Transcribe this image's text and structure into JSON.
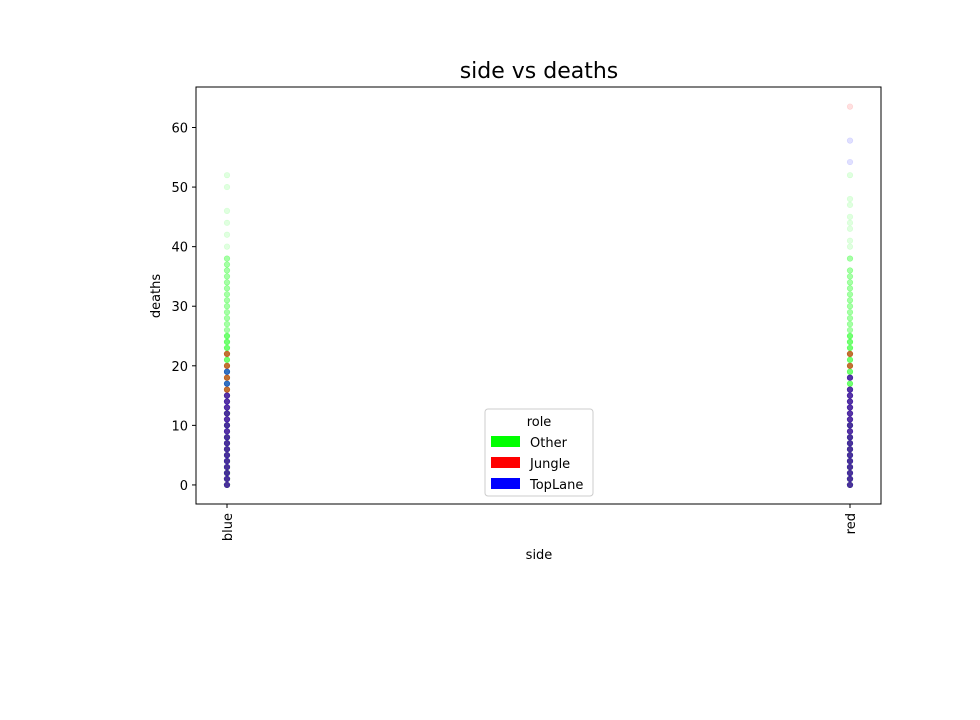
{
  "chart_data": {
    "type": "scatter",
    "title": "side vs deaths",
    "xlabel": "side",
    "ylabel": "deaths",
    "categories": [
      "blue",
      "red"
    ],
    "ylim": [
      -3.2,
      66.8
    ],
    "yticks": [
      0,
      10,
      20,
      30,
      40,
      50,
      60
    ],
    "grid": false,
    "legend": {
      "title": "role",
      "placement": "lower center",
      "entries": [
        {
          "name": "Other",
          "color": "#00ff00"
        },
        {
          "name": "Jungle",
          "color": "#ff0000"
        },
        {
          "name": "TopLane",
          "color": "#0000ff"
        }
      ]
    },
    "series": [
      {
        "name": "Other",
        "color": "#00ff00",
        "points": [
          {
            "x": "blue",
            "y": [
              0,
              0,
              1,
              1,
              2,
              2,
              2,
              3,
              3,
              4,
              4,
              5,
              5,
              6,
              6,
              7,
              7,
              8,
              8,
              9,
              10,
              10,
              11,
              12,
              12,
              13,
              14,
              15,
              16,
              17,
              18,
              19,
              20,
              21,
              22,
              23,
              24,
              25,
              26,
              27,
              28,
              29,
              30,
              31,
              32,
              33,
              34,
              35,
              36,
              37,
              38,
              40,
              42,
              44,
              46,
              50,
              52
            ]
          },
          {
            "x": "red",
            "y": [
              0,
              0,
              1,
              1,
              2,
              2,
              3,
              3,
              4,
              4,
              5,
              5,
              6,
              6,
              7,
              7,
              8,
              8,
              9,
              10,
              10,
              11,
              12,
              13,
              14,
              15,
              16,
              17,
              18,
              19,
              20,
              21,
              22,
              23,
              24,
              25,
              26,
              27,
              28,
              29,
              30,
              31,
              32,
              33,
              34,
              35,
              36,
              38,
              40,
              41,
              43,
              44,
              45,
              47,
              48,
              52
            ]
          }
        ]
      },
      {
        "name": "Jungle",
        "color": "#ff0000",
        "points": [
          {
            "x": "blue",
            "y": [
              0,
              1,
              2,
              3,
              4,
              5,
              6,
              7,
              8,
              9,
              10,
              11,
              12,
              13,
              14,
              15,
              16,
              18,
              20,
              22
            ]
          },
          {
            "x": "red",
            "y": [
              0,
              1,
              2,
              3,
              4,
              5,
              6,
              7,
              8,
              9,
              10,
              11,
              12,
              13,
              14,
              15,
              16,
              18,
              20,
              22,
              63.5
            ]
          }
        ]
      },
      {
        "name": "TopLane",
        "color": "#0000ff",
        "points": [
          {
            "x": "blue",
            "y": [
              0,
              1,
              2,
              3,
              4,
              5,
              6,
              7,
              8,
              9,
              10,
              11,
              12,
              13,
              14,
              15,
              17,
              19
            ]
          },
          {
            "x": "red",
            "y": [
              0,
              1,
              2,
              3,
              4,
              5,
              6,
              7,
              8,
              9,
              10,
              11,
              12,
              13,
              14,
              15,
              16,
              18,
              54.2,
              57.8
            ]
          }
        ]
      }
    ]
  }
}
